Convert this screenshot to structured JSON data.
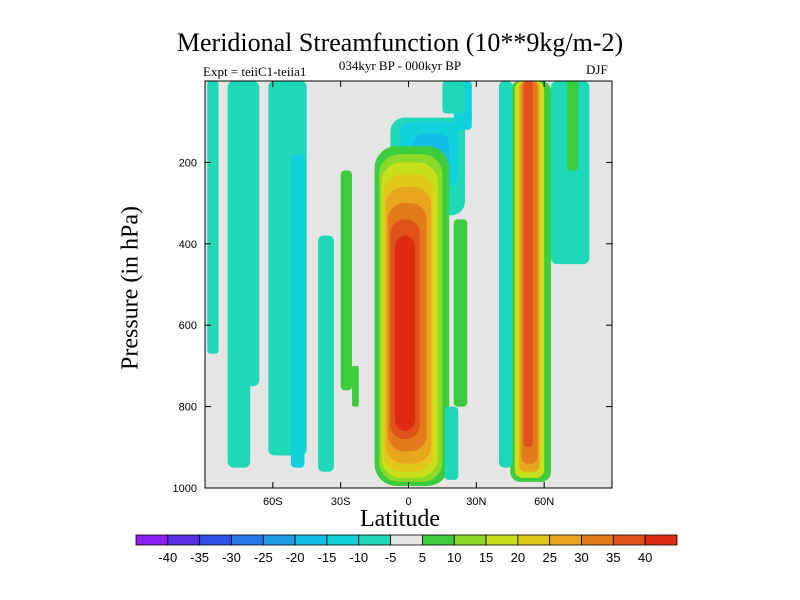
{
  "chart_data": {
    "type": "contour",
    "title": "Meridional Streamfunction (10**9kg/m-2)",
    "subtitle_left": "Expt = teiiC1-teiia1",
    "subtitle_center": "034kyr BP - 000kyr BP",
    "subtitle_right": "DJF",
    "xlabel": "Latitude",
    "ylabel": "Pressure (in hPa)",
    "xlim": [
      -90,
      90
    ],
    "ylim": [
      1000,
      0
    ],
    "x_ticks": [
      {
        "value": -60,
        "label": "60S"
      },
      {
        "value": -30,
        "label": "30S"
      },
      {
        "value": 0,
        "label": "0"
      },
      {
        "value": 30,
        "label": "30N"
      },
      {
        "value": 60,
        "label": "60N"
      }
    ],
    "y_ticks": [
      {
        "value": 200,
        "label": "200"
      },
      {
        "value": 400,
        "label": "400"
      },
      {
        "value": 600,
        "label": "600"
      },
      {
        "value": 800,
        "label": "800"
      },
      {
        "value": 1000,
        "label": "1000"
      }
    ],
    "background_color": "#e5e5e5",
    "contour_levels": [
      -40,
      -35,
      -30,
      -25,
      -20,
      -15,
      -10,
      -5,
      5,
      10,
      15,
      20,
      25,
      30,
      35,
      40
    ],
    "colorbar_colors": [
      "#8a1ff0",
      "#5a2ee6",
      "#2f4fe6",
      "#2577e8",
      "#1f9ae6",
      "#12bde8",
      "#10d0dc",
      "#1ed8b8",
      "#e6e6e6",
      "#3dcc3d",
      "#8cd92a",
      "#c8e01c",
      "#e3c81c",
      "#e8a51e",
      "#e37b1c",
      "#e0521a",
      "#dc2b10"
    ],
    "features": [
      {
        "name": "equatorial positive cell",
        "lat_range": [
          -12,
          16
        ],
        "p_range": [
          170,
          990
        ],
        "max": 40
      },
      {
        "name": "60N positive column",
        "lat_range": [
          46,
          62
        ],
        "p_range": [
          0,
          980
        ],
        "max": 35
      },
      {
        "name": "upper tropospheric negative cell",
        "lat_range": [
          -10,
          25
        ],
        "p_range": [
          100,
          300
        ],
        "min": -25
      }
    ]
  }
}
